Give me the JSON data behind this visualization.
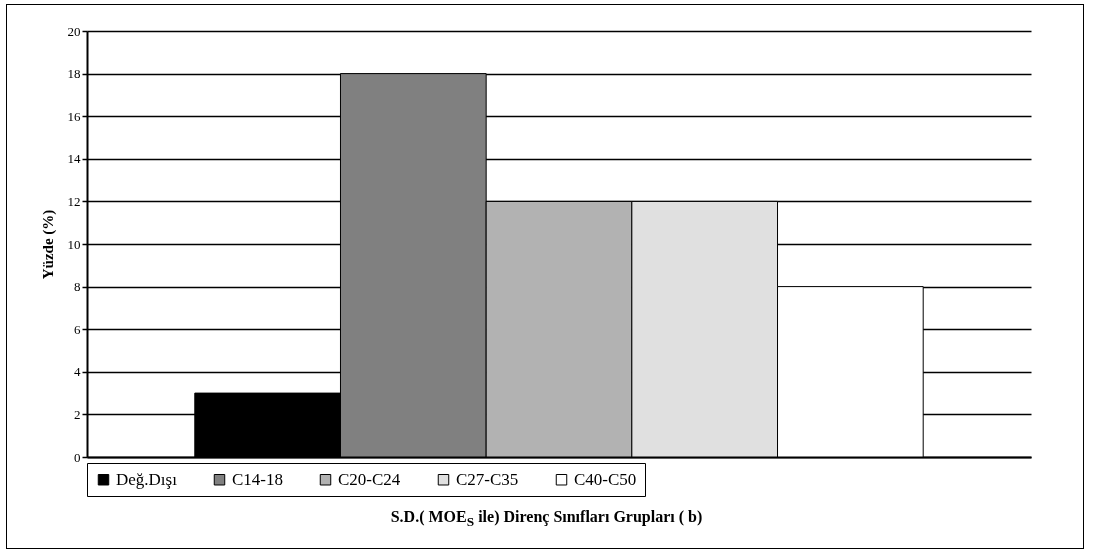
{
  "chart_data": {
    "type": "bar",
    "ylabel": "Yüzde (%)",
    "xlabel": "S.D.( MOE$_{S}$ ile) Direnç Sınıfları Grupları ( b)",
    "categories": [
      null
    ],
    "series": [
      {
        "name": "Değ.Dışı",
        "color": "#000000",
        "values": [
          3
        ]
      },
      {
        "name": "C14-18",
        "color": "#808080",
        "values": [
          18
        ]
      },
      {
        "name": "C20-C24",
        "color": "#b2b2b2",
        "values": [
          12
        ]
      },
      {
        "name": "C27-C35",
        "color": "#e0e0e0",
        "values": [
          12
        ]
      },
      {
        "name": "C40-C50",
        "color": "#ffffff",
        "values": [
          8
        ]
      }
    ],
    "ylim": [
      0,
      20
    ],
    "yticks": [
      0,
      2,
      4,
      6,
      8,
      10,
      12,
      14,
      16,
      18,
      20
    ],
    "grid": "y",
    "legend": "bottom"
  }
}
